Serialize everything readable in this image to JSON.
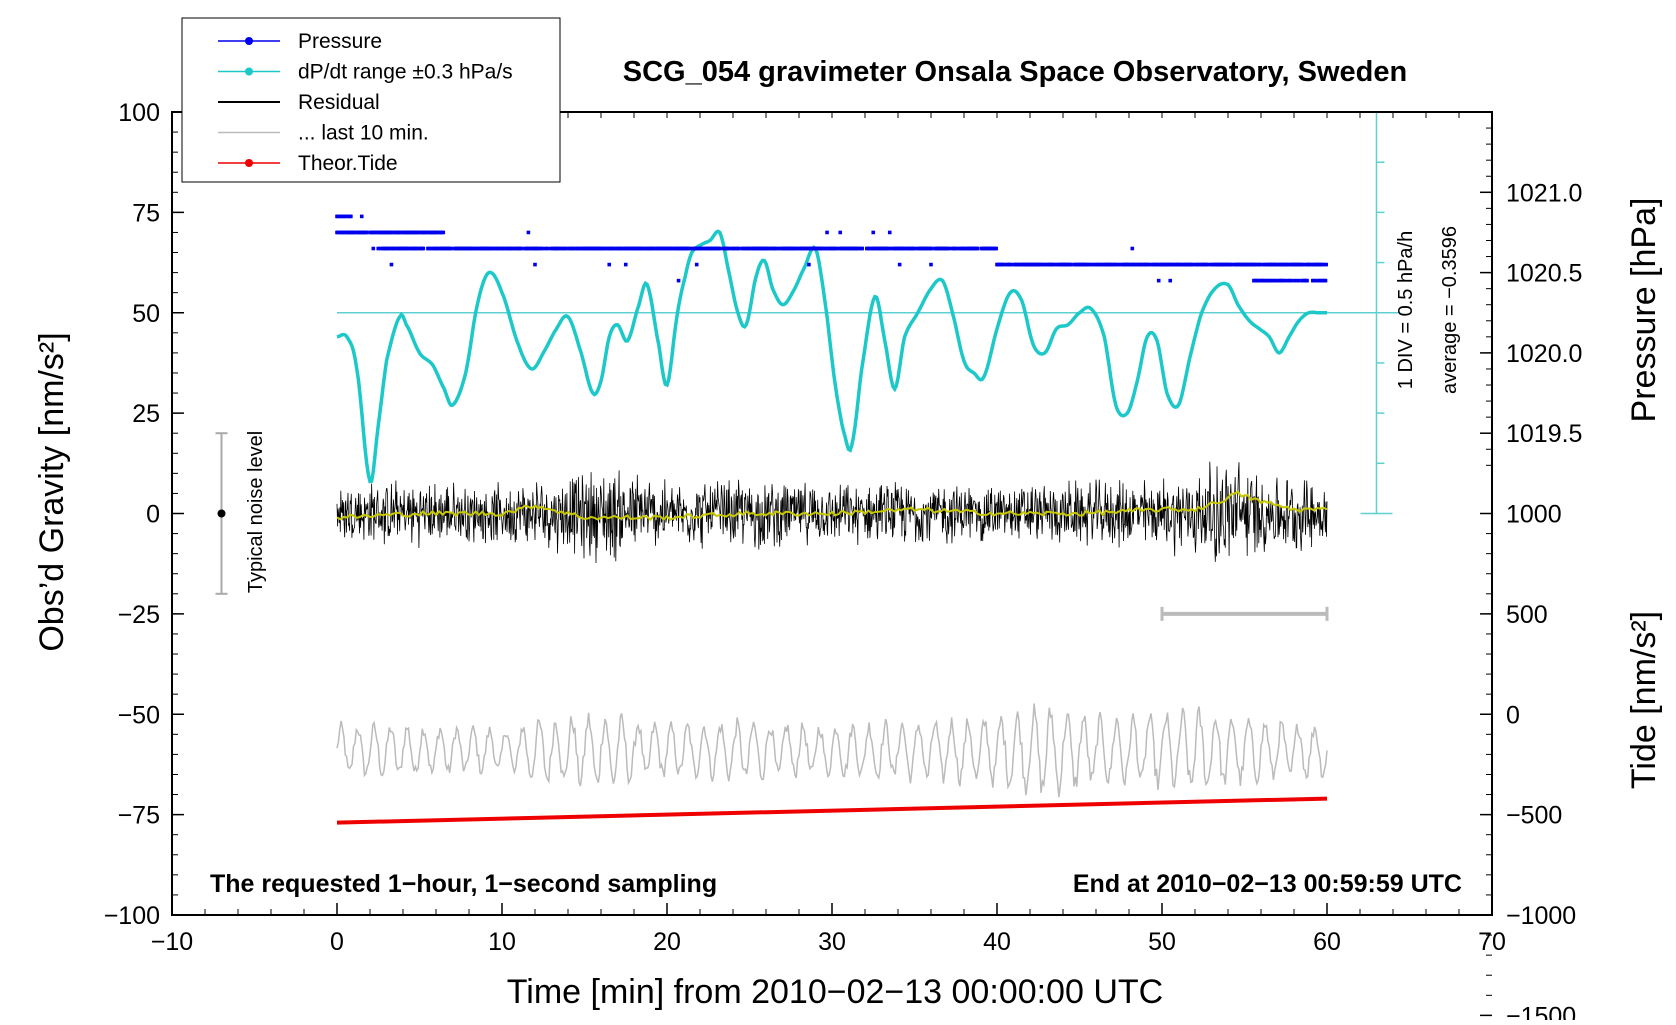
{
  "chart_data": {
    "type": "line",
    "title": "SCG_054 gravimeter Onsala Space Observatory, Sweden",
    "xlabel": "Time [min] from 2010−02−13 00:00:00 UTC",
    "ylabel_left": "Obs’d Gravity [nm/s²]",
    "ylabel_right_top": "Pressure [hPa]",
    "ylabel_right_bottom": "Tide [nm/s²]",
    "xlim": [
      -10,
      70
    ],
    "ylim_left": [
      -100,
      100
    ],
    "xticks": [
      {
        "value": -10,
        "label": "−10"
      },
      {
        "value": 0,
        "label": "0"
      },
      {
        "value": 10,
        "label": "10"
      },
      {
        "value": 20,
        "label": "20"
      },
      {
        "value": 30,
        "label": "30"
      },
      {
        "value": 40,
        "label": "40"
      },
      {
        "value": 50,
        "label": "50"
      },
      {
        "value": 60,
        "label": "60"
      },
      {
        "value": 70,
        "label": "70"
      }
    ],
    "yticks_left": [
      {
        "value": 100,
        "label": "100"
      },
      {
        "value": 75,
        "label": "75"
      },
      {
        "value": 50,
        "label": "50"
      },
      {
        "value": 25,
        "label": "25"
      },
      {
        "value": 0,
        "label": "0"
      },
      {
        "value": -25,
        "label": "−25"
      },
      {
        "value": -50,
        "label": "−50"
      },
      {
        "value": -75,
        "label": "−75"
      },
      {
        "value": -100,
        "label": "−100"
      }
    ],
    "pressure_axis": {
      "ticks": [
        {
          "value": 1021.0,
          "label": "1021.0"
        },
        {
          "value": 1020.5,
          "label": "1020.5"
        },
        {
          "value": 1020.0,
          "label": "1020.0"
        },
        {
          "value": 1019.5,
          "label": "1019.5"
        }
      ],
      "map": {
        "p_ref": 1020.0,
        "g_at_ref": 40,
        "g_per_hpa": 40
      }
    },
    "tide_axis": {
      "ticks": [
        {
          "value": 1000,
          "label": "1000"
        },
        {
          "value": 500,
          "label": "500"
        },
        {
          "value": 0,
          "label": "0"
        },
        {
          "value": -500,
          "label": "−500"
        },
        {
          "value": -1000,
          "label": "−1000"
        },
        {
          "value": -1500,
          "label": "−1500"
        }
      ],
      "map": {
        "t_ref": 0,
        "g_at_ref": -50,
        "g_per_unit": 0.05
      }
    },
    "legend": {
      "position": "top-left",
      "entries": [
        {
          "label": "Pressure",
          "color": "#0000ee",
          "marker": true
        },
        {
          "label": "dP/dt range ±0.3 hPa/s",
          "color": "#1cc8c8",
          "marker": true
        },
        {
          "label": "Residual",
          "color": "#000000",
          "marker": false
        },
        {
          "label": "... last 10 min.",
          "color": "#bbbbbb",
          "marker": false
        },
        {
          "label": "Theor.Tide",
          "color": "#ee0000",
          "marker": true
        }
      ]
    },
    "series": [
      {
        "name": "Pressure",
        "color": "#0000ee",
        "unit": "hPa",
        "levels": [
          {
            "value": 1020.85,
            "from": 0,
            "to": 0.9
          },
          {
            "value": 1020.75,
            "from": 0,
            "to": 6.5
          },
          {
            "value": 1020.65,
            "from": 2.5,
            "to": 40
          },
          {
            "value": 1020.55,
            "from": 40,
            "to": 60
          },
          {
            "value": 1020.45,
            "from": 55.5,
            "to": 60
          }
        ]
      },
      {
        "name": "dP/dt",
        "color": "#1cc8c8",
        "unit": "nm/s² (plotted)",
        "x": [
          0,
          0.6,
          1.2,
          2.0,
          2.5,
          3.0,
          3.8,
          4.2,
          5.0,
          5.8,
          6.5,
          7.0,
          7.8,
          8.5,
          9.2,
          10.0,
          11.0,
          11.8,
          12.5,
          13.3,
          14.0,
          14.8,
          15.5,
          16.0,
          16.5,
          17.0,
          17.6,
          18.3,
          18.8,
          19.5,
          20.0,
          20.6,
          21.1,
          21.5,
          22.1,
          22.6,
          23.2,
          23.7,
          24.3,
          24.8,
          25.4,
          25.9,
          26.4,
          27.0,
          27.6,
          28.3,
          29.0,
          29.6,
          30.2,
          30.8,
          31.2,
          31.8,
          32.6,
          33.2,
          33.8,
          34.4,
          35.2,
          36.0,
          36.7,
          37.3,
          38.0,
          38.6,
          39.2,
          40.0,
          40.8,
          41.5,
          42.2,
          42.9,
          43.6,
          44.3,
          45.0,
          45.7,
          46.5,
          47.2,
          47.9,
          48.5,
          49.1,
          49.7,
          50.3,
          51.0,
          51.7,
          52.4,
          53.2,
          54.0,
          54.6,
          55.3,
          55.9,
          56.5,
          57.1,
          57.7,
          58.3,
          58.9,
          59.5,
          60.0
        ],
        "values": [
          44,
          44,
          36,
          8,
          22,
          38,
          49,
          47,
          40,
          37,
          31,
          27,
          35,
          52,
          60,
          55,
          42,
          36,
          40,
          46,
          49,
          40,
          30,
          33,
          44,
          47,
          43,
          52,
          57,
          42,
          32,
          49,
          59,
          65,
          67,
          68,
          70,
          61,
          50,
          47,
          59,
          63,
          56,
          52,
          55,
          61,
          66,
          52,
          32,
          19,
          17,
          36,
          54,
          43,
          31,
          44,
          50,
          56,
          58,
          50,
          38,
          35,
          34,
          46,
          55,
          53,
          42,
          40,
          46,
          47,
          50,
          51,
          44,
          27,
          25,
          33,
          44,
          43,
          30,
          27,
          39,
          50,
          56,
          57,
          52,
          48,
          46,
          44,
          40,
          44,
          48,
          50,
          50,
          50
        ]
      },
      {
        "name": "Residual",
        "color": "#000000",
        "unit": "nm/s²",
        "x_range": [
          0,
          60
        ],
        "envelope": {
          "x": [
            0,
            5,
            10,
            14,
            16.5,
            20,
            25,
            30,
            35,
            40,
            45,
            50,
            53,
            54.5,
            56,
            60
          ],
          "amplitude": [
            9,
            9,
            8,
            11,
            14,
            9,
            10,
            8,
            9,
            8,
            9,
            10,
            14,
            16,
            11,
            10
          ]
        }
      },
      {
        "name": "Residual smoothed",
        "color": "#c8c800",
        "unit": "nm/s²",
        "x": [
          0,
          5,
          10,
          12,
          15,
          20,
          25,
          30,
          35,
          40,
          45,
          50,
          52,
          53.5,
          54.5,
          56,
          58,
          60
        ],
        "values": [
          -1,
          0,
          0,
          2,
          -1,
          -1,
          0,
          0,
          1,
          0,
          0,
          1,
          1,
          3,
          5,
          3,
          1,
          1
        ]
      },
      {
        "name": "... last 10 min.",
        "color": "#bbbbbb",
        "unit": "nm/s²",
        "x_range": [
          0,
          60
        ],
        "center": -59,
        "amplitude": [
          7,
          7,
          6,
          9,
          10,
          7,
          8,
          7,
          8,
          9,
          12,
          9,
          10,
          11,
          8,
          7
        ],
        "amp_x": [
          0,
          5,
          10,
          13,
          16,
          20,
          25,
          30,
          35,
          40,
          43,
          46,
          50,
          52,
          56,
          60
        ],
        "period_min": 1.0
      },
      {
        "name": "Theor.Tide",
        "color": "#ee0000",
        "unit": "nm/s²",
        "x": [
          0,
          60
        ],
        "values": [
          -77,
          -71
        ]
      }
    ],
    "noise_bar": {
      "label": "Typical noise level",
      "x": -7,
      "center": 0,
      "low": -20,
      "high": 20
    },
    "last10_bar": {
      "from": 50,
      "to": 60,
      "y": -25
    },
    "dpdt_scale": {
      "label_div": "1 DIV = 0.5 hPa/h",
      "label_avg": "average = −0.3596",
      "x": 63,
      "top": 100,
      "bottom": 0,
      "reference": 50,
      "ticks": [
        100,
        87.5,
        75,
        62.5,
        50,
        37.5,
        25,
        12.5,
        0
      ]
    },
    "annotations": {
      "bottom_left": "The requested 1−hour, 1−second sampling",
      "bottom_right": "End at 2010−02−13 00:59:59 UTC"
    }
  }
}
